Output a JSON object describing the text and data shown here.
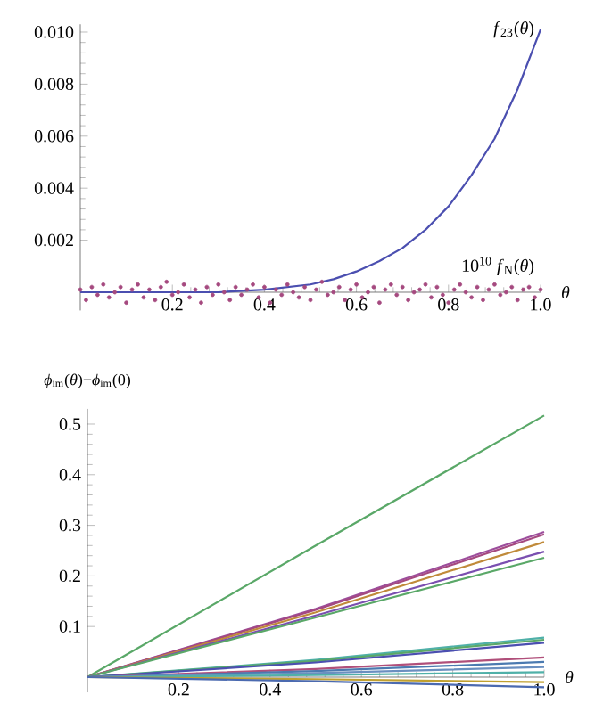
{
  "chart_data": [
    {
      "type": "line",
      "xlabel": "θ",
      "xlim": [
        0,
        1.0
      ],
      "ylim": [
        -0.0007,
        0.0103
      ],
      "xticks": [
        {
          "value": 0.2,
          "label": "0.2"
        },
        {
          "value": 0.4,
          "label": "0.4"
        },
        {
          "value": 0.6,
          "label": "0.6"
        },
        {
          "value": 0.8,
          "label": "0.8"
        },
        {
          "value": 1.0,
          "label": "1.0"
        }
      ],
      "yticks": [
        {
          "value": 0.002,
          "label": "0.002"
        },
        {
          "value": 0.004,
          "label": "0.004"
        },
        {
          "value": 0.006,
          "label": "0.006"
        },
        {
          "value": 0.008,
          "label": "0.008"
        },
        {
          "value": 0.01,
          "label": "0.010"
        }
      ],
      "grid": false,
      "series": [
        {
          "name": "*f*$_{23}$(*θ*)",
          "type": "line",
          "color": "#4b4fb0",
          "x": [
            0,
            0.1,
            0.2,
            0.3,
            0.4,
            0.5,
            0.55,
            0.6,
            0.65,
            0.7,
            0.75,
            0.8,
            0.85,
            0.9,
            0.95,
            1.0
          ],
          "values": [
            0,
            0,
            0,
            0,
            0.0001,
            0.0003,
            0.0005,
            0.0008,
            0.0012,
            0.0017,
            0.0024,
            0.0033,
            0.0045,
            0.0059,
            0.0078,
            0.0101
          ]
        },
        {
          "name": "10$^{10}$ *f*$_{N}$(*θ*)",
          "type": "scatter",
          "color": "#a5497f",
          "x": [
            0.0,
            0.0125,
            0.025,
            0.0375,
            0.05,
            0.0625,
            0.075,
            0.0875,
            0.1,
            0.1125,
            0.125,
            0.1375,
            0.15,
            0.1625,
            0.175,
            0.1875,
            0.2,
            0.2125,
            0.225,
            0.2375,
            0.25,
            0.2625,
            0.275,
            0.2875,
            0.3,
            0.3125,
            0.325,
            0.3375,
            0.35,
            0.3625,
            0.375,
            0.3875,
            0.4,
            0.4125,
            0.425,
            0.4375,
            0.45,
            0.4625,
            0.475,
            0.4875,
            0.5,
            0.5125,
            0.525,
            0.5375,
            0.55,
            0.5625,
            0.575,
            0.5875,
            0.6,
            0.6125,
            0.625,
            0.6375,
            0.65,
            0.6625,
            0.675,
            0.6875,
            0.7,
            0.7125,
            0.725,
            0.7375,
            0.75,
            0.7625,
            0.775,
            0.7875,
            0.8,
            0.8125,
            0.825,
            0.8375,
            0.85,
            0.8625,
            0.875,
            0.8875,
            0.9,
            0.9125,
            0.925,
            0.9375,
            0.95,
            0.9625,
            0.975,
            0.9875,
            1.0
          ],
          "values": [
            0.0001,
            -0.0003,
            0.0002,
            -0.0001,
            0.0003,
            -0.0002,
            0.0,
            0.0002,
            -0.0004,
            0.0001,
            0.0003,
            -0.0002,
            0.0001,
            -0.0003,
            0.0002,
            0.0004,
            -0.0001,
            0.0,
            0.0003,
            -0.0002,
            0.0001,
            -0.0004,
            0.0002,
            -0.0001,
            0.0003,
            0.0,
            -0.0003,
            0.0002,
            -0.0001,
            0.0001,
            0.0003,
            -0.0002,
            0.0002,
            -0.0004,
            0.0001,
            -0.0001,
            0.0003,
            0.0,
            -0.0002,
            0.0002,
            -0.0003,
            0.0001,
            0.0004,
            -0.0001,
            0.0,
            0.0002,
            -0.0003,
            0.0001,
            0.0003,
            -0.0002,
            0.0,
            0.0002,
            -0.0004,
            0.0001,
            0.0003,
            -0.0001,
            0.0002,
            -0.0003,
            0.0,
            0.0001,
            0.0003,
            -0.0002,
            0.0002,
            -0.0001,
            -0.0004,
            0.0001,
            0.0003,
            0.0,
            -0.0002,
            0.0002,
            -0.0003,
            0.0001,
            0.0003,
            -0.0001,
            0.0,
            0.0002,
            -0.0003,
            0.0001,
            0.0002,
            -0.0002,
            0.0001
          ]
        }
      ]
    },
    {
      "type": "line",
      "xlabel": "θ",
      "ylabel": "*ϕ*$_{im}$(*θ*)−*ϕ*$_{im}$(0)",
      "xlim": [
        0,
        1.0
      ],
      "ylim": [
        -0.03,
        0.53
      ],
      "xticks": [
        {
          "value": 0.2,
          "label": "0.2"
        },
        {
          "value": 0.4,
          "label": "0.4"
        },
        {
          "value": 0.6,
          "label": "0.6"
        },
        {
          "value": 0.8,
          "label": "0.8"
        },
        {
          "value": 1.0,
          "label": "1.0"
        }
      ],
      "yticks": [
        0.1,
        0.2,
        0.3,
        0.4,
        0.5
      ],
      "grid": false,
      "series": [
        {
          "color": "#5aa868",
          "x": [
            0,
            0.5,
            1.0
          ],
          "values": [
            0,
            0.26,
            0.517
          ]
        },
        {
          "color": "#9c4d9c",
          "x": [
            0,
            0.5,
            1.0
          ],
          "values": [
            0,
            0.135,
            0.287
          ]
        },
        {
          "color": "#a5497f",
          "x": [
            0,
            0.5,
            1.0
          ],
          "values": [
            0,
            0.133,
            0.282
          ]
        },
        {
          "color": "#c08a3a",
          "x": [
            0,
            0.5,
            1.0
          ],
          "values": [
            0,
            0.128,
            0.267
          ]
        },
        {
          "color": "#7a4fb0",
          "x": [
            0,
            0.5,
            1.0
          ],
          "values": [
            0,
            0.122,
            0.248
          ]
        },
        {
          "color": "#5aa868",
          "x": [
            0,
            0.5,
            1.0
          ],
          "values": [
            0,
            0.118,
            0.236
          ]
        },
        {
          "color": "#4fb0a8",
          "x": [
            0,
            0.5,
            1.0
          ],
          "values": [
            0,
            0.034,
            0.078
          ]
        },
        {
          "color": "#5aa868",
          "x": [
            0,
            0.5,
            1.0
          ],
          "values": [
            0,
            0.032,
            0.074
          ]
        },
        {
          "color": "#4b4fb0",
          "x": [
            0,
            0.5,
            1.0
          ],
          "values": [
            0,
            0.029,
            0.068
          ]
        },
        {
          "color": "#b04f7a",
          "x": [
            0,
            0.5,
            1.0
          ],
          "values": [
            0,
            0.016,
            0.039
          ]
        },
        {
          "color": "#4b7ab0",
          "x": [
            0,
            0.5,
            1.0
          ],
          "values": [
            0,
            0.012,
            0.03
          ]
        },
        {
          "color": "#6a8fc0",
          "x": [
            0,
            0.5,
            1.0
          ],
          "values": [
            0,
            0.008,
            0.02
          ]
        },
        {
          "color": "#4fb0a8",
          "x": [
            0,
            0.5,
            1.0
          ],
          "values": [
            0,
            0.004,
            0.01
          ]
        },
        {
          "color": "#c0a030",
          "x": [
            0,
            0.5,
            1.0
          ],
          "values": [
            0,
            -0.004,
            -0.01
          ]
        },
        {
          "color": "#4b6ab0",
          "x": [
            0,
            0.5,
            1.0
          ],
          "values": [
            0,
            -0.008,
            -0.02
          ]
        }
      ]
    }
  ]
}
